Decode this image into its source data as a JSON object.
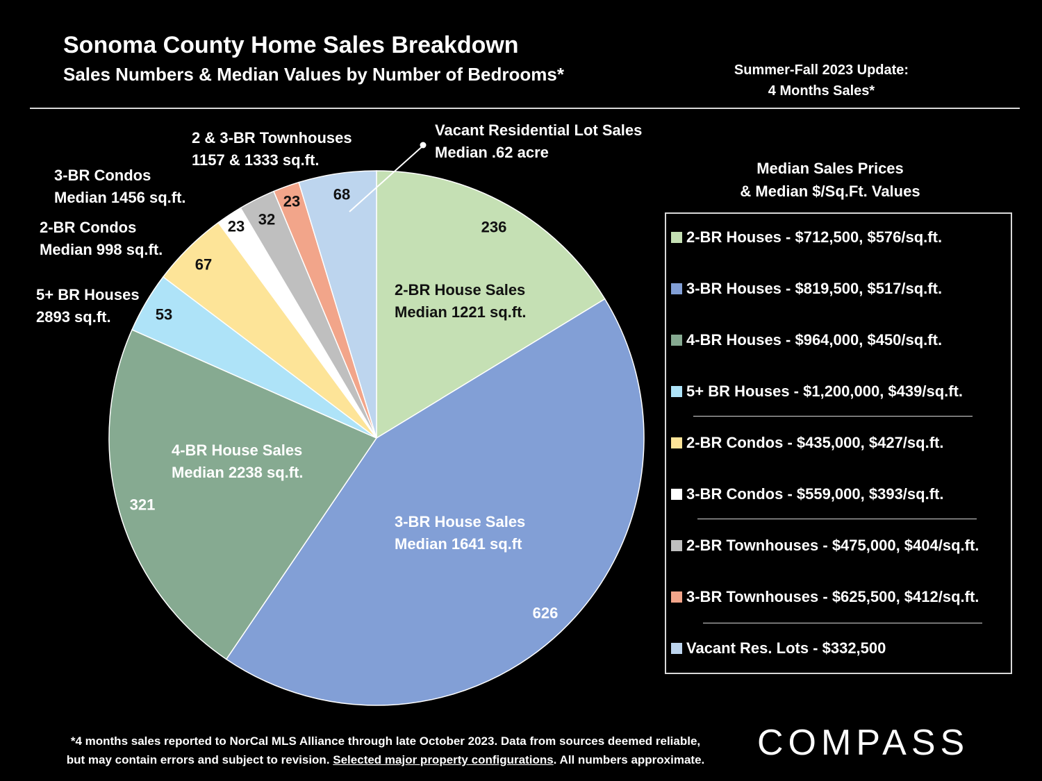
{
  "header": {
    "title": "Sonoma County Home Sales Breakdown",
    "subtitle": "Sales Numbers & Median Values by Number of Bedrooms*",
    "update_line1": "Summer-Fall 2023 Update:",
    "update_line2": "4 Months Sales*"
  },
  "chart_data": {
    "type": "pie",
    "title": "Sonoma County Home Sales Breakdown",
    "start_angle_deg": 0,
    "direction": "clockwise",
    "slices": [
      {
        "label": "2-BR House Sales",
        "value": 236,
        "color": "#c5e0b4"
      },
      {
        "label": "3-BR House Sales",
        "value": 626,
        "color": "#829fd6"
      },
      {
        "label": "4-BR House Sales",
        "value": 321,
        "color": "#86aa91"
      },
      {
        "label": "5+ BR Houses",
        "value": 53,
        "color": "#aee3f8"
      },
      {
        "label": "2-BR Condos",
        "value": 67,
        "color": "#fde498"
      },
      {
        "label": "3-BR Condos",
        "value": 23,
        "color": "#ffffff"
      },
      {
        "label": "2-BR Townhouses",
        "value": 32,
        "color": "#bfbfbf"
      },
      {
        "label": "3-BR Townhouses",
        "value": 23,
        "color": "#f2a58a"
      },
      {
        "label": "Vacant Residential Lot Sales",
        "value": 68,
        "color": "#bdd5ee"
      }
    ]
  },
  "annotations": {
    "br2_house": [
      "2-BR House Sales",
      "Median 1221 sq.ft."
    ],
    "br3_house": [
      "3-BR House Sales",
      "Median 1641 sq.ft"
    ],
    "br4_house": [
      "4-BR House Sales",
      "Median 2238 sq.ft."
    ],
    "br5_house": [
      "5+ BR Houses",
      "2893 sq.ft."
    ],
    "br2_condo": [
      "2-BR Condos",
      "Median 998 sq.ft."
    ],
    "br3_condo": [
      "3-BR Condos",
      "Median 1456 sq.ft."
    ],
    "townhouses": [
      "2 & 3-BR Townhouses",
      "1157 & 1333 sq.ft."
    ],
    "vacant": [
      "Vacant Residential Lot Sales",
      "Median .62 acre"
    ]
  },
  "legend": {
    "heading_line1": "Median Sales Prices",
    "heading_line2": "& Median $/Sq.Ft. Values",
    "items": [
      {
        "text": "2-BR Houses - $712,500, $576/sq.ft.",
        "color": "#c5e0b4"
      },
      {
        "text": "3-BR Houses - $819,500, $517/sq.ft.",
        "color": "#829fd6"
      },
      {
        "text": "4-BR Houses - $964,000, $450/sq.ft.",
        "color": "#86aa91"
      },
      {
        "text": "5+ BR Houses - $1,200,000, $439/sq.ft.",
        "color": "#aee3f8"
      },
      {
        "text": "2-BR Condos - $435,000, $427/sq.ft.",
        "color": "#fde498"
      },
      {
        "text": "3-BR Condos - $559,000, $393/sq.ft.",
        "color": "#ffffff"
      },
      {
        "text": "2-BR Townhouses - $475,000, $404/sq.ft.",
        "color": "#bfbfbf"
      },
      {
        "text": "3-BR Townhouses - $625,500, $412/sq.ft.",
        "color": "#f2a58a"
      },
      {
        "text": "Vacant Res. Lots - $332,500",
        "color": "#bdd5ee"
      }
    ]
  },
  "footnote": {
    "line1": "*4 months sales reported to NorCal MLS Alliance through late October 2023. Data from sources deemed reliable,",
    "line2_pre": "but may contain errors and subject to revision. ",
    "line2_link": "Selected major property configurations",
    "line2_post": ". All numbers approximate."
  },
  "logo": "COMPASS"
}
